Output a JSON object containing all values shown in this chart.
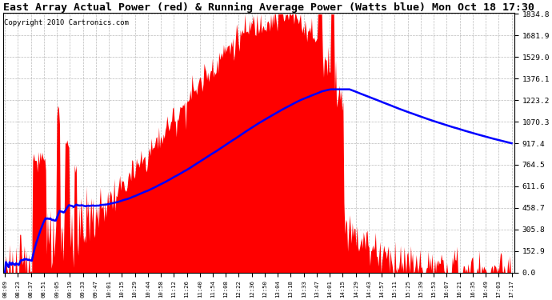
{
  "title": "East Array Actual Power (red) & Running Average Power (Watts blue) Mon Oct 18 17:30",
  "copyright": "Copyright 2010 Cartronics.com",
  "y_max": 1834.8,
  "y_min": 0.0,
  "y_ticks": [
    0.0,
    152.9,
    305.8,
    458.7,
    611.6,
    764.5,
    917.4,
    1070.3,
    1223.2,
    1376.1,
    1529.0,
    1681.9,
    1834.8
  ],
  "x_labels": [
    "08:09",
    "08:23",
    "08:37",
    "08:51",
    "09:05",
    "09:19",
    "09:33",
    "09:47",
    "10:01",
    "10:15",
    "10:29",
    "10:44",
    "10:58",
    "11:12",
    "11:26",
    "11:40",
    "11:54",
    "12:08",
    "12:22",
    "12:36",
    "12:50",
    "13:04",
    "13:18",
    "13:33",
    "13:47",
    "14:01",
    "14:15",
    "14:29",
    "14:43",
    "14:57",
    "15:11",
    "15:25",
    "15:39",
    "15:53",
    "16:07",
    "16:21",
    "16:35",
    "16:49",
    "17:03",
    "17:17"
  ],
  "n_labels": 40,
  "bar_color": "#ff0000",
  "line_color": "#0000ff",
  "background_color": "#ffffff",
  "title_fontsize": 9.5,
  "copyright_fontsize": 6.5,
  "grid_color": "#aaaaaa"
}
